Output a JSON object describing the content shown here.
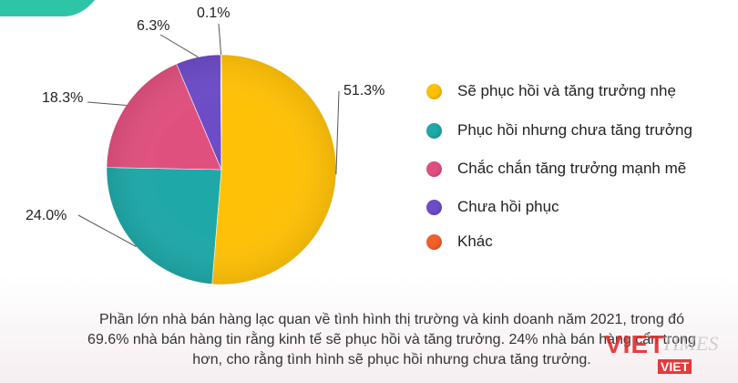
{
  "chart_data": {
    "type": "pie",
    "slices": [
      {
        "label": "Sẽ phục hồi và tăng trưởng nhẹ",
        "value": 51.3,
        "display": "51.3%",
        "color": "#ffc107"
      },
      {
        "label": "Phục hồi nhưng chưa tăng trưởng",
        "value": 24.0,
        "display": "24.0%",
        "color": "#1fa8a8"
      },
      {
        "label": "Chắc chắn tăng trưởng mạnh mẽ",
        "value": 18.3,
        "display": "18.3%",
        "color": "#e0507f"
      },
      {
        "label": "Chưa hồi phục",
        "value": 6.3,
        "display": "6.3%",
        "color": "#6d4cc7"
      },
      {
        "label": "Khác",
        "value": 0.1,
        "display": "0.1%",
        "color": "#f0602a"
      }
    ]
  },
  "caption": {
    "line1": "Phần lớn nhà bán hàng lạc quan về tình hình thị trường và kinh doanh năm 2021, trong đó",
    "line2": "69.6% nhà bán hàng tin rằng kinh tế sẽ phục hồi và tăng trưởng. 24% nhà bán hàng cẩn trọng",
    "line3": "hơn, cho rằng tình hình sẽ phục hồi nhưng chưa tăng trưởng."
  },
  "watermark": {
    "brand": "VIET",
    "suffix": "TIMES",
    "sub": "VIET"
  },
  "colors": {
    "corner_accent": "#2ec4a8"
  }
}
